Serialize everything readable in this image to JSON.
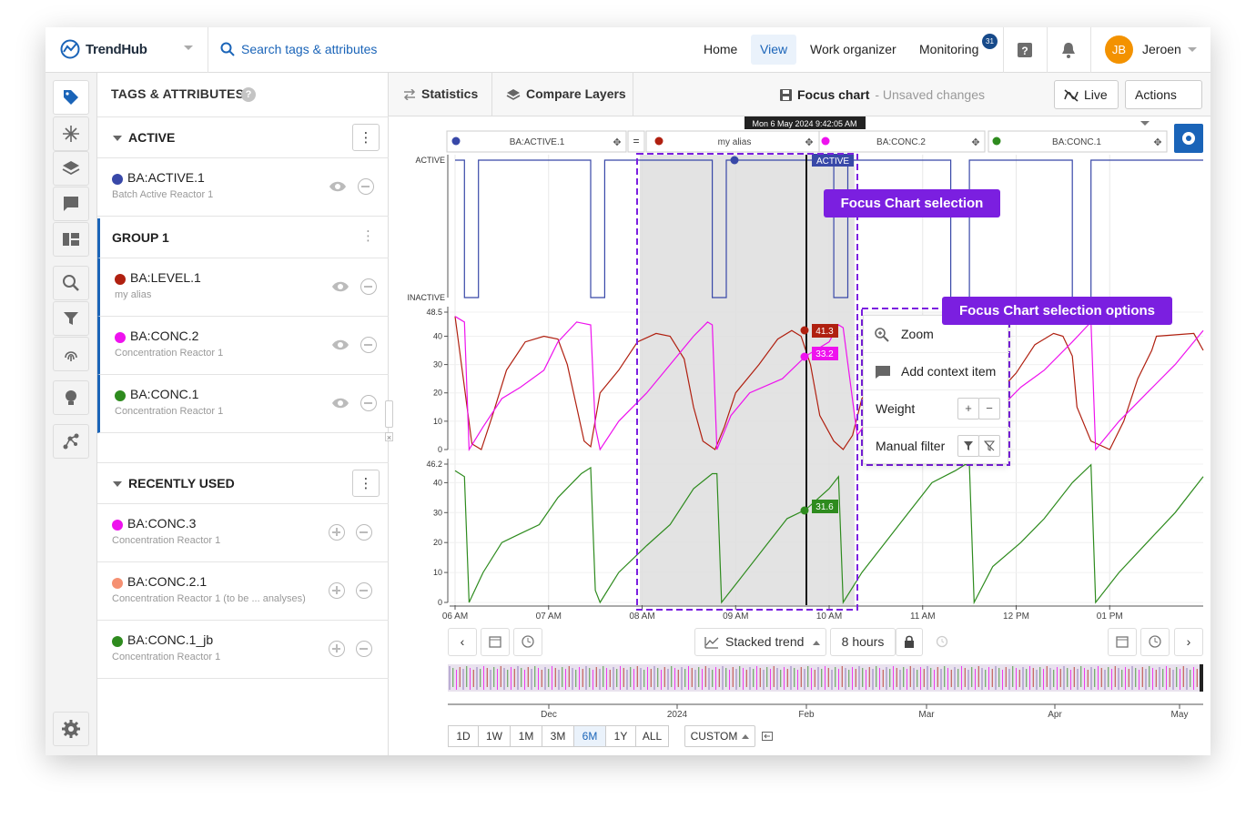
{
  "app": {
    "name": "TrendHub"
  },
  "search": {
    "placeholder": "Search tags & attributes"
  },
  "nav": {
    "home": "Home",
    "view": "View",
    "work": "Work organizer",
    "monitoring": "Monitoring",
    "monitoring_badge": "31"
  },
  "user": {
    "initials": "JB",
    "name": "Jeroen"
  },
  "panel": {
    "title": "TAGS & ATTRIBUTES",
    "active_label": "ACTIVE",
    "group_label": "GROUP 1",
    "recent_label": "RECENTLY USED",
    "active_items": [
      {
        "name": "BA:ACTIVE.1",
        "desc": "Batch Active Reactor 1",
        "color": "#3848a8"
      }
    ],
    "group_items": [
      {
        "name": "BA:LEVEL.1",
        "desc": "my alias",
        "color": "#b02010"
      },
      {
        "name": "BA:CONC.2",
        "desc": "Concentration Reactor 1",
        "color": "#ee12ee"
      },
      {
        "name": "BA:CONC.1",
        "desc": "Concentration Reactor 1",
        "color": "#2e8b1e"
      }
    ],
    "recent_items": [
      {
        "name": "BA:CONC.3",
        "desc": "Concentration Reactor 1",
        "color": "#ee12ee"
      },
      {
        "name": "BA:CONC.2.1",
        "desc": "Concentration Reactor 1 (to be ... analyses)",
        "color": "#f59072"
      },
      {
        "name": "BA:CONC.1_jb",
        "desc": "Concentration Reactor 1",
        "color": "#2e8b1e"
      }
    ]
  },
  "toolbar": {
    "statistics": "Statistics",
    "compare": "Compare Layers",
    "focus": "Focus chart",
    "unsaved": "- Unsaved changes",
    "live": "Live",
    "actions": "Actions"
  },
  "legend": {
    "items": [
      "BA:ACTIVE.1",
      "my alias",
      "BA:CONC.2",
      "BA:CONC.1"
    ],
    "equals": "="
  },
  "cursor": {
    "timestamp": "Mon 6 May 2024 9:42:05 AM",
    "state": "ACTIVE",
    "value_red": "41.3",
    "value_mag": "33.2",
    "value_green": "31.6"
  },
  "callouts": {
    "selection": "Focus Chart selection",
    "options": "Focus Chart selection options"
  },
  "menu": {
    "zoom": "Zoom",
    "context": "Add context item",
    "weight": "Weight",
    "filter": "Manual filter",
    "plus": "+",
    "minus": "−"
  },
  "controls": {
    "mode": "Stacked trend",
    "duration": "8 hours",
    "custom": "CUSTOM"
  },
  "ranges": [
    "1D",
    "1W",
    "1M",
    "3M",
    "6M",
    "1Y",
    "ALL"
  ],
  "chart_data": {
    "type": "line",
    "title": "Focus chart",
    "x_ticks": [
      "06 AM",
      "07 AM",
      "08 AM",
      "09 AM",
      "10 AM",
      "11 AM",
      "12 PM",
      "01 PM"
    ],
    "overview_ticks": [
      "Dec",
      "2024",
      "Feb",
      "Mar",
      "Apr",
      "May"
    ],
    "panels": [
      {
        "name": "BA:ACTIVE.1",
        "y_labels": [
          "ACTIVE",
          "INACTIVE"
        ],
        "series": [
          {
            "name": "BA:ACTIVE.1",
            "color": "#3848a8",
            "x": [
              6.0,
              6.1,
              6.1,
              6.25,
              6.25,
              6.45,
              6.45,
              7.45,
              7.45,
              7.6,
              7.6,
              7.83,
              7.83,
              8.75,
              8.75,
              8.9,
              8.9,
              9.15,
              9.15,
              10.05,
              10.05,
              10.2,
              10.2,
              10.4,
              10.4,
              11.3,
              11.3,
              11.5,
              11.5,
              11.7,
              11.7,
              12.6,
              12.6,
              12.8,
              12.8,
              13.05,
              13.05,
              14.0
            ],
            "y": [
              1,
              1,
              0,
              0,
              1,
              1,
              1,
              1,
              0,
              0,
              1,
              1,
              1,
              1,
              0,
              0,
              1,
              1,
              1,
              1,
              0,
              0,
              1,
              1,
              1,
              1,
              0,
              0,
              1,
              1,
              1,
              1,
              0,
              0,
              1,
              1,
              1,
              1
            ]
          }
        ]
      },
      {
        "name": "my alias / BA:CONC.2",
        "y_ticks": [
          0,
          10,
          20,
          30,
          40,
          48.5
        ],
        "series": [
          {
            "name": "my alias",
            "color": "#b02010",
            "x": [
              6.0,
              6.1,
              6.18,
              6.28,
              6.4,
              6.55,
              6.75,
              6.95,
              7.1,
              7.2,
              7.3,
              7.38,
              7.45,
              7.55,
              7.75,
              7.95,
              8.15,
              8.3,
              8.45,
              8.55,
              8.65,
              8.78,
              8.88,
              9.0,
              9.25,
              9.45,
              9.6,
              9.7,
              9.8,
              9.9,
              10.05,
              10.15,
              10.25,
              10.35,
              10.5,
              10.75,
              10.95,
              11.1,
              11.2,
              11.35,
              11.5,
              11.55,
              11.75,
              12.0,
              12.2,
              12.4,
              12.5,
              12.6,
              12.65,
              12.8,
              13.0,
              13.15,
              13.3,
              13.45,
              13.5,
              13.9,
              14.0
            ],
            "y": [
              47,
              22,
              2,
              0,
              12,
              28,
              38,
              40,
              39,
              30,
              15,
              3,
              1,
              20,
              28,
              38,
              41,
              40,
              32,
              15,
              3,
              0,
              8,
              20,
              30,
              39,
              42,
              40,
              30,
              12,
              3,
              0,
              5,
              18,
              24,
              35,
              40,
              41,
              35,
              20,
              5,
              1,
              18,
              27,
              37,
              41,
              40,
              33,
              15,
              3,
              0,
              10,
              25,
              35,
              40,
              41,
              35
            ]
          },
          {
            "name": "BA:CONC.2",
            "color": "#ee12ee",
            "x": [
              6.0,
              6.1,
              6.15,
              6.3,
              6.5,
              6.7,
              6.95,
              7.1,
              7.3,
              7.45,
              7.5,
              7.55,
              7.75,
              8.05,
              8.3,
              8.55,
              8.7,
              8.75,
              8.8,
              8.95,
              9.15,
              9.5,
              9.75,
              10.0,
              10.1,
              10.15,
              10.3,
              10.5,
              10.75,
              11.05,
              11.3,
              11.45,
              11.5,
              11.55,
              11.75,
              12.05,
              12.3,
              12.6,
              12.8,
              12.85,
              13.1,
              13.4,
              13.7,
              14.0
            ],
            "y": [
              47,
              45,
              0,
              8,
              18,
              22,
              28,
              38,
              45,
              44,
              8,
              0,
              10,
              20,
              30,
              40,
              45,
              44,
              0,
              12,
              20,
              25,
              33,
              38,
              44,
              43,
              5,
              14,
              22,
              28,
              38,
              45,
              46,
              0,
              12,
              22,
              28,
              38,
              45,
              0,
              10,
              20,
              30,
              42
            ]
          }
        ]
      },
      {
        "name": "BA:CONC.1",
        "y_ticks": [
          0,
          10,
          20,
          30,
          40,
          46.2
        ],
        "series": [
          {
            "name": "BA:CONC.1",
            "color": "#2e8b1e",
            "x": [
              6.0,
              6.1,
              6.15,
              6.3,
              6.5,
              6.7,
              6.9,
              7.1,
              7.35,
              7.45,
              7.5,
              7.55,
              7.75,
              8.05,
              8.3,
              8.55,
              8.75,
              8.8,
              8.85,
              9.05,
              9.3,
              9.55,
              9.75,
              10.0,
              10.1,
              10.15,
              10.35,
              10.6,
              10.85,
              11.1,
              11.35,
              11.45,
              11.5,
              11.55,
              11.75,
              12.05,
              12.3,
              12.6,
              12.8,
              12.85,
              13.1,
              13.4,
              13.7,
              14.0
            ],
            "y": [
              44,
              42,
              0,
              10,
              20,
              23,
              26,
              35,
              43,
              45,
              4,
              0,
              10,
              19,
              26,
              38,
              43,
              43,
              0,
              8,
              18,
              28,
              31,
              38,
              42,
              0,
              10,
              20,
              30,
              40,
              44,
              46,
              46,
              0,
              12,
              20,
              28,
              40,
              46,
              0,
              10,
              20,
              30,
              42
            ]
          }
        ]
      }
    ]
  }
}
